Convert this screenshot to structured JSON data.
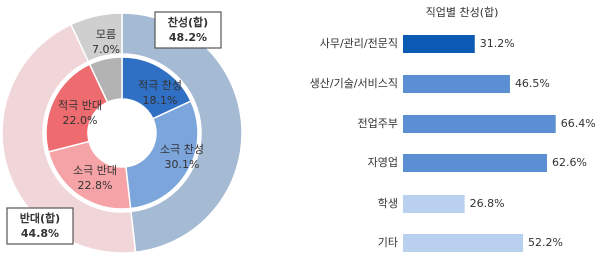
{
  "chart_data": [
    {
      "type": "donut",
      "rings": [
        {
          "labels": [
            "찬성(합)",
            "반대(합)",
            "모름"
          ],
          "values": [
            48.2,
            44.8,
            7.0
          ],
          "value_labels": [
            "48.2%",
            "44.8%",
            "7.0%"
          ],
          "colors": [
            "#a5bad3",
            "#f1d6d9",
            "#cfcfcf"
          ]
        },
        {
          "labels": [
            "적극 찬성",
            "소극 찬성",
            "소극 반대",
            "적극 반대",
            "모름"
          ],
          "values": [
            18.1,
            30.1,
            22.8,
            22.0,
            7.0
          ],
          "value_labels": [
            "18.1%",
            "30.1%",
            "22.8%",
            "22.0%",
            "7.0%"
          ],
          "colors": [
            "#2f6fc4",
            "#7ba5db",
            "#f5a3a6",
            "#ee6b70",
            "#b3b3b3"
          ]
        }
      ]
    },
    {
      "type": "bar",
      "orientation": "horizontal",
      "title": "직업별 찬성(합)",
      "categories": [
        "사무/관리/전문직",
        "생산/기술/서비스직",
        "전업주부",
        "자영업",
        "학생",
        "기타"
      ],
      "values": [
        31.2,
        46.5,
        66.4,
        62.6,
        26.8,
        52.2
      ],
      "value_labels": [
        "31.2%",
        "46.5%",
        "66.4%",
        "62.6%",
        "26.8%",
        "52.2%"
      ],
      "colors": [
        "#0b5bb4",
        "#5b8fd3",
        "#5b8fd3",
        "#5b8fd3",
        "#b9d0ee",
        "#b9d0ee"
      ]
    }
  ]
}
